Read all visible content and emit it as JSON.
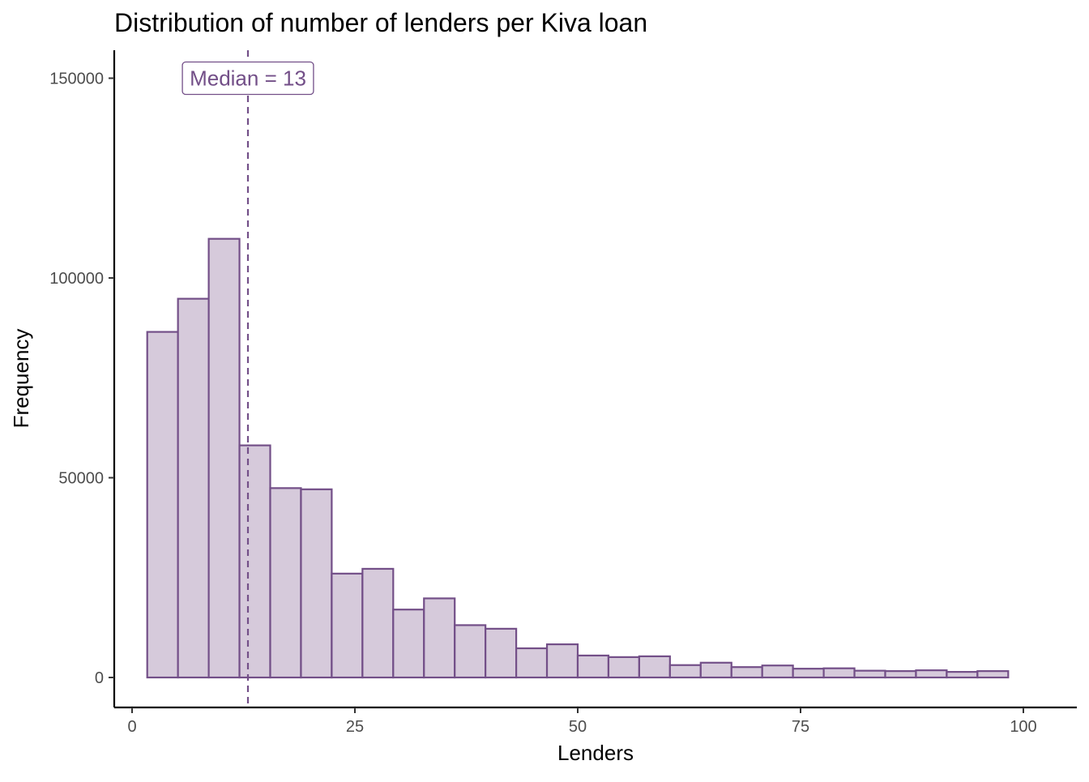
{
  "chart_data": {
    "type": "bar",
    "subtype": "histogram",
    "title": "Distribution of number of lenders per Kiva loan",
    "xlabel": "Lenders",
    "ylabel": "Frequency",
    "xlim": [
      -2,
      106
    ],
    "ylim": [
      -7500,
      157000
    ],
    "x_ticks": [
      0,
      25,
      50,
      75,
      100
    ],
    "x_tick_labels": [
      "0",
      "25",
      "50",
      "75",
      "100"
    ],
    "y_ticks": [
      0,
      50000,
      100000,
      150000
    ],
    "y_tick_labels": [
      "0",
      "50000",
      "100000",
      "150000"
    ],
    "grid": false,
    "legend": "none",
    "bin_width": 3.45,
    "bin_start": 1.7,
    "values": [
      86500,
      94800,
      109800,
      58100,
      47400,
      47100,
      26000,
      27200,
      17000,
      19800,
      13100,
      12200,
      7300,
      8300,
      5500,
      5100,
      5300,
      3100,
      3700,
      2600,
      3000,
      2200,
      2300,
      1700,
      1600,
      1800,
      1400,
      1600
    ],
    "median_line": {
      "value": 13,
      "label": "Median = 13",
      "style": "dashed"
    },
    "colors": {
      "bar_fill": "#d6cadb",
      "bar_stroke": "#734f88",
      "accent": "#734f88",
      "axis": "#000000",
      "tick_text": "#4d4d4d"
    }
  }
}
